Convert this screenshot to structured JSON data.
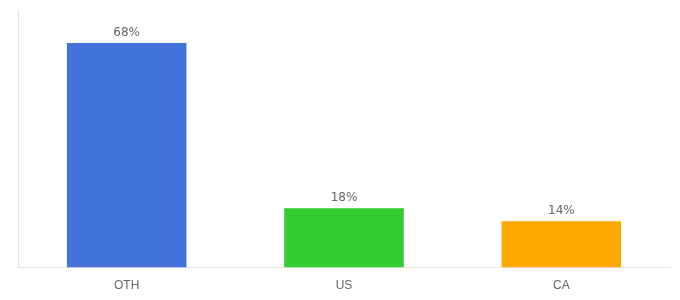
{
  "chart_data": {
    "type": "bar",
    "categories": [
      "OTH",
      "US",
      "CA"
    ],
    "values": [
      68,
      18,
      14
    ],
    "value_labels": [
      "68%",
      "18%",
      "14%"
    ],
    "colors": [
      "#4472db",
      "#33cc33",
      "#ffaa00"
    ],
    "ylim": [
      0,
      78
    ],
    "grid": false,
    "data_labels": true,
    "tick_labels": "x"
  }
}
